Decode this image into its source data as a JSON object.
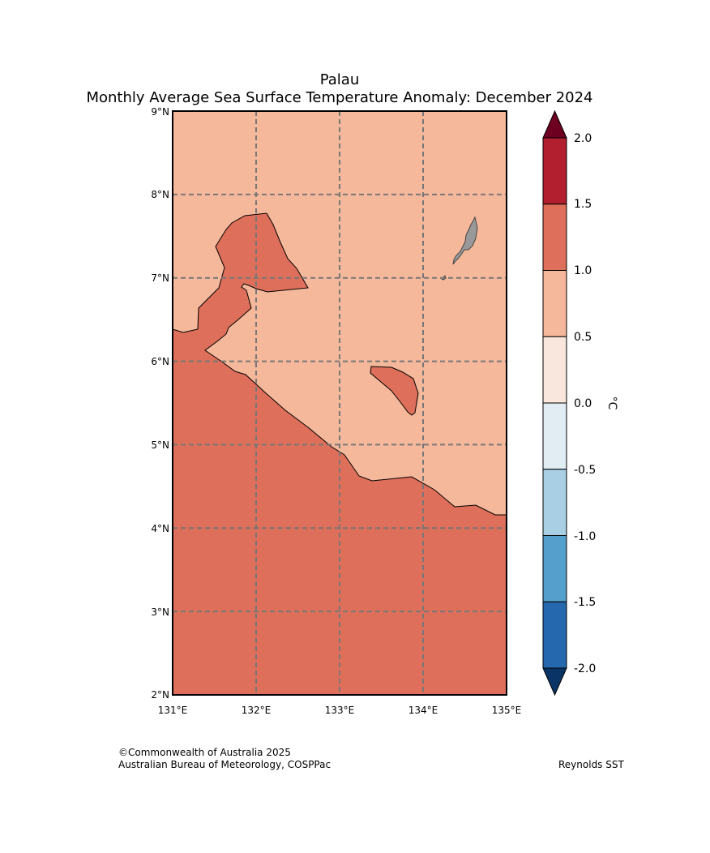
{
  "title": {
    "line1": "Palau",
    "line2": "Monthly Average Sea Surface Temperature Anomaly: December 2024"
  },
  "map": {
    "region": "Palau",
    "lon_range": [
      131,
      135
    ],
    "lat_range": [
      2,
      9
    ],
    "lon_ticks": [
      "131°E",
      "132°E",
      "133°E",
      "134°E",
      "135°E"
    ],
    "lat_ticks": [
      "9°N",
      "8°N",
      "7°N",
      "6°N",
      "5°N",
      "4°N",
      "3°N",
      "2°N"
    ],
    "gridlines": true,
    "land_color": "#999999",
    "fields": {
      "anomaly_0_5_to_1_0": "#f6b89a",
      "anomaly_1_0_to_1_5": "#de6f5a"
    }
  },
  "colorbar": {
    "unit": "°C",
    "tick_labels": [
      "2.0",
      "1.5",
      "1.0",
      "0.5",
      "0.0",
      "-0.5",
      "-1.0",
      "-1.5",
      "-2.0"
    ],
    "bands": [
      {
        "range": [
          1.5,
          2.0
        ],
        "color": "#b21f2f"
      },
      {
        "range": [
          1.0,
          1.5
        ],
        "color": "#de6f5a"
      },
      {
        "range": [
          0.5,
          1.0
        ],
        "color": "#f6b89a"
      },
      {
        "range": [
          0.0,
          0.5
        ],
        "color": "#f9e6dd"
      },
      {
        "range": [
          -0.5,
          0.0
        ],
        "color": "#e1ecf3"
      },
      {
        "range": [
          -1.0,
          -0.5
        ],
        "color": "#a8cfe3"
      },
      {
        "range": [
          -1.5,
          -1.0
        ],
        "color": "#559fcc"
      },
      {
        "range": [
          -2.0,
          -1.5
        ],
        "color": "#2568ae"
      }
    ],
    "over_color": "#6d0021",
    "under_color": "#0a3466"
  },
  "footer": {
    "copyright": "©Commonwealth of Australia 2025",
    "source": "Australian Bureau of Meteorology, COSPPac",
    "dataset": "Reynolds SST"
  }
}
